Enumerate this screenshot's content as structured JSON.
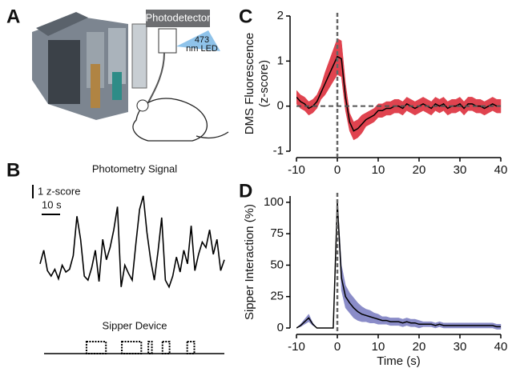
{
  "panel_labels": [
    "A",
    "B",
    "C",
    "D"
  ],
  "panel_a": {
    "photodetector_label": "Photodetector",
    "led_label": [
      "473",
      "nm LED"
    ]
  },
  "chart_data": [
    {
      "type": "line",
      "ylabel": [
        "DMS Fluorescence",
        "(z-score)"
      ],
      "x": [
        -10,
        -9,
        -8,
        -7,
        -6,
        -5,
        -4,
        -3,
        -2,
        -1,
        0,
        1,
        2,
        3,
        4,
        5,
        6,
        7,
        8,
        9,
        10,
        11,
        12,
        13,
        14,
        15,
        16,
        17,
        18,
        19,
        20,
        21,
        22,
        23,
        24,
        25,
        26,
        27,
        28,
        29,
        30,
        31,
        32,
        33,
        34,
        35,
        36,
        37,
        38,
        39,
        40
      ],
      "series": [
        {
          "color": "#e0434f",
          "values": [
            0.2,
            0.1,
            0.05,
            -0.05,
            0,
            0.1,
            0.3,
            0.5,
            0.7,
            0.9,
            1.1,
            1.05,
            0.2,
            -0.35,
            -0.55,
            -0.5,
            -0.4,
            -0.3,
            -0.25,
            -0.2,
            -0.1,
            -0.1,
            -0.05,
            -0.05,
            0,
            0,
            -0.05,
            0.05,
            0,
            -0.05,
            0,
            0.05,
            0,
            -0.05,
            0.05,
            0,
            0.05,
            -0.05,
            0,
            0,
            0.05,
            -0.05,
            0.05,
            0.05,
            0,
            0,
            -0.05,
            0,
            0.05,
            0,
            0
          ],
          "error": [
            0.15,
            0.15,
            0.15,
            0.15,
            0.15,
            0.15,
            0.15,
            0.25,
            0.3,
            0.35,
            0.4,
            0.4,
            0.3,
            0.2,
            0.2,
            0.2,
            0.2,
            0.15,
            0.15,
            0.15,
            0.15,
            0.15,
            0.15,
            0.15,
            0.15,
            0.15,
            0.15,
            0.15,
            0.15,
            0.15,
            0.15,
            0.15,
            0.15,
            0.15,
            0.15,
            0.15,
            0.15,
            0.15,
            0.15,
            0.15,
            0.15,
            0.15,
            0.15,
            0.15,
            0.15,
            0.15,
            0.15,
            0.15,
            0.15,
            0.15,
            0.15
          ]
        }
      ],
      "xlim": [
        -10,
        40
      ],
      "ylim": [
        -1,
        2
      ],
      "xticks": [
        -10,
        0,
        10,
        20,
        30,
        40
      ],
      "yticks": [
        -1,
        0,
        1,
        2
      ]
    },
    {
      "type": "line",
      "ylabel": [
        "Sipper Interaction (%)"
      ],
      "xlabel": "Time (s)",
      "x": [
        -10,
        -9,
        -8,
        -7,
        -6,
        -5,
        -4,
        -3,
        -2,
        -1,
        0,
        1,
        2,
        3,
        4,
        5,
        6,
        7,
        8,
        9,
        10,
        11,
        12,
        13,
        14,
        15,
        16,
        17,
        18,
        19,
        20,
        21,
        22,
        23,
        24,
        25,
        26,
        27,
        28,
        29,
        30,
        31,
        32,
        33,
        34,
        35,
        36,
        37,
        38,
        39,
        40
      ],
      "series": [
        {
          "color": "#8a8cc8",
          "values": [
            0,
            2,
            5,
            8,
            3,
            0,
            0,
            0,
            0,
            0,
            100,
            40,
            25,
            20,
            16,
            13,
            11,
            10,
            9,
            8,
            7,
            6,
            6,
            5,
            5,
            5,
            4,
            5,
            4,
            4,
            3,
            3,
            3,
            3,
            2,
            3,
            2,
            2,
            2,
            2,
            2,
            2,
            2,
            2,
            2,
            2,
            2,
            2,
            2,
            1,
            1
          ],
          "error": [
            0,
            1,
            2,
            3,
            1,
            0,
            0,
            0,
            0,
            0,
            2,
            10,
            9,
            8,
            8,
            7,
            6,
            5,
            5,
            4,
            4,
            3,
            3,
            3,
            3,
            3,
            3,
            3,
            3,
            3,
            3,
            2,
            2,
            2,
            2,
            2,
            2,
            2,
            2,
            2,
            2,
            2,
            2,
            2,
            2,
            2,
            2,
            2,
            2,
            2,
            2
          ]
        }
      ],
      "xlim": [
        -10,
        40
      ],
      "ylim": [
        0,
        105
      ],
      "xticks": [
        -10,
        0,
        10,
        20,
        30,
        40
      ],
      "yticks": [
        0,
        25,
        50,
        75,
        100
      ]
    },
    {
      "type": "trace",
      "title": "Photometry Signal",
      "scalebar_y": {
        "value": 1,
        "label": "1 z-score"
      },
      "scalebar_x": {
        "value": 10,
        "label": "10 s"
      },
      "x": [
        0,
        2,
        4,
        6,
        8,
        10,
        12,
        14,
        16,
        18,
        20,
        22,
        24,
        26,
        28,
        30,
        32,
        34,
        36,
        38,
        40,
        42,
        44,
        46,
        48,
        50,
        52,
        54,
        56,
        58,
        60,
        62,
        64,
        66,
        68,
        70,
        72,
        74,
        76,
        78,
        80,
        82,
        84,
        86,
        88,
        90,
        92,
        94,
        96,
        98,
        100
      ],
      "values": [
        0.6,
        1.6,
        0.1,
        -0.3,
        0.2,
        -0.5,
        0.5,
        0,
        0.2,
        1.2,
        4.1,
        2.4,
        -0.3,
        -0.6,
        0.3,
        1.6,
        -0.7,
        2.4,
        0.9,
        1.8,
        3.1,
        4.8,
        -1.1,
        0.5,
        -0.1,
        -0.6,
        2.1,
        4.6,
        5.6,
        2.9,
        0.9,
        -0.6,
        1.5,
        4.0,
        -0.6,
        -1.1,
        -0.3,
        1.1,
        0,
        1.6,
        0.6,
        3.4,
        0.1,
        1.3,
        2.2,
        1.8,
        3.1,
        1.3,
        2.4,
        0.1,
        0.9
      ]
    },
    {
      "type": "event",
      "title": "Sipper Device",
      "xlim": [
        -2,
        100
      ],
      "bouts": [
        [
          22,
          33
        ],
        [
          42,
          53
        ],
        [
          57,
          59
        ],
        [
          65,
          69
        ],
        [
          79,
          83
        ]
      ]
    }
  ]
}
